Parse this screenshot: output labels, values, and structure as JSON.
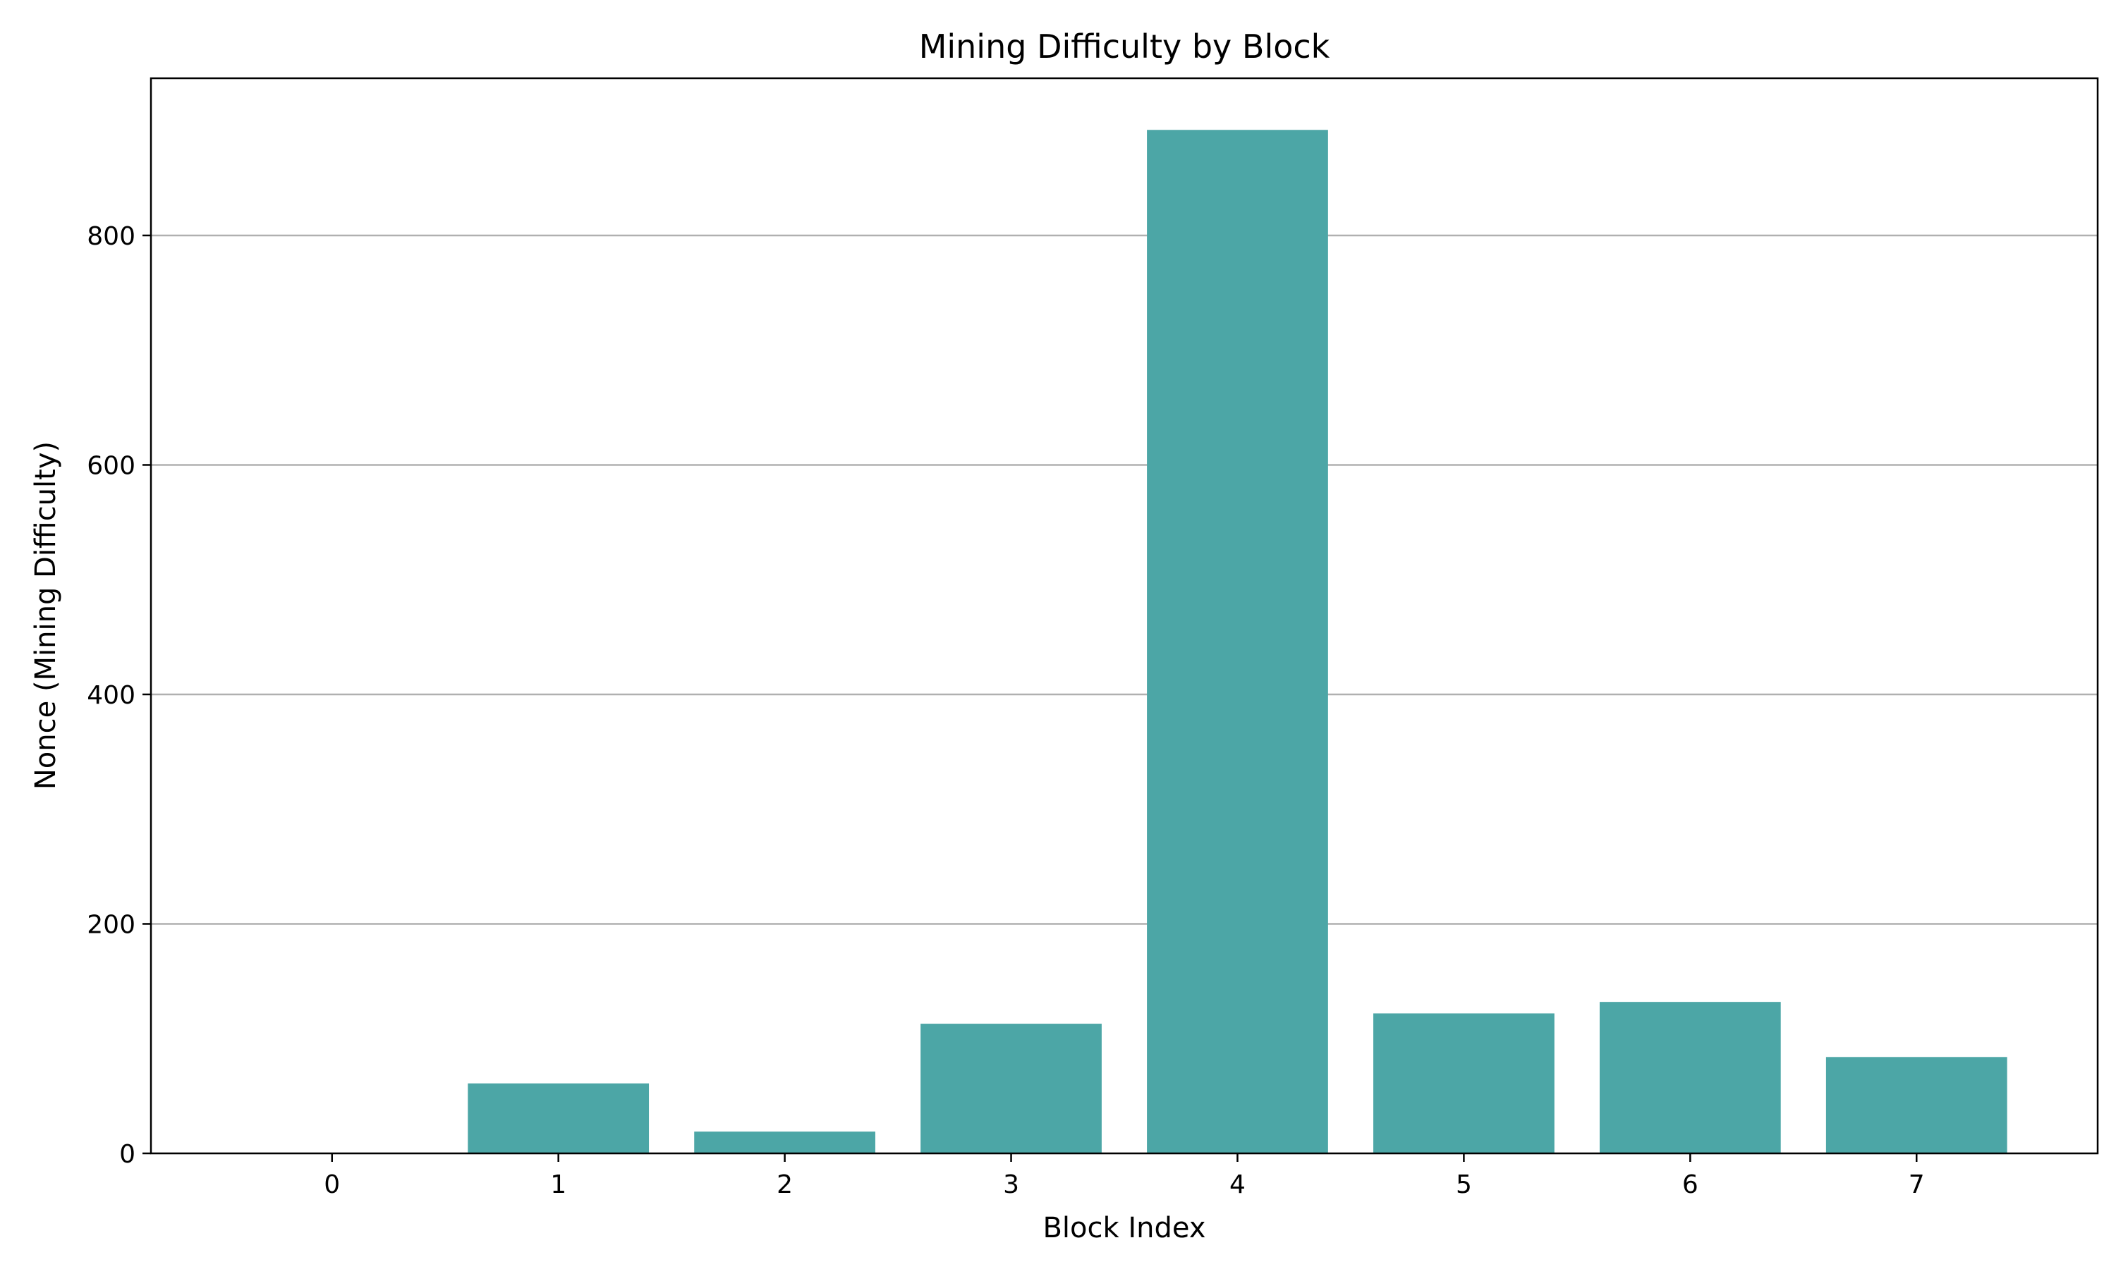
{
  "chart_data": {
    "type": "bar",
    "title": "Mining Difficulty by Block",
    "xlabel": "Block Index",
    "ylabel": "Nonce (Mining Difficulty)",
    "categories": [
      "0",
      "1",
      "2",
      "3",
      "4",
      "5",
      "6",
      "7"
    ],
    "values": [
      0,
      61,
      19,
      113,
      892,
      122,
      132,
      84
    ],
    "ylim": [
      0,
      937
    ],
    "yticks": [
      0,
      200,
      400,
      600,
      800
    ],
    "grid": "y",
    "bar_color": "#4ca6a6"
  }
}
